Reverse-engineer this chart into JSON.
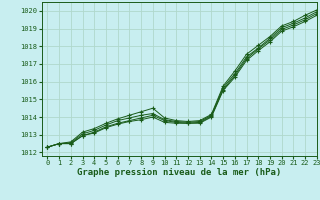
{
  "title": "Graphe pression niveau de la mer (hPa)",
  "bg_color": "#c8eef0",
  "grid_color": "#b0d8cc",
  "line_color": "#1a5c1a",
  "xlim": [
    -0.5,
    23
  ],
  "ylim": [
    1011.8,
    1020.5
  ],
  "yticks": [
    1012,
    1013,
    1014,
    1015,
    1016,
    1017,
    1018,
    1019,
    1020
  ],
  "xticks": [
    0,
    1,
    2,
    3,
    4,
    5,
    6,
    7,
    8,
    9,
    10,
    11,
    12,
    13,
    14,
    15,
    16,
    17,
    18,
    19,
    20,
    21,
    22,
    23
  ],
  "series": [
    [
      1012.3,
      1012.5,
      1012.5,
      1012.95,
      1013.1,
      1013.4,
      1013.6,
      1013.75,
      1013.85,
      1014.0,
      1013.7,
      1013.65,
      1013.65,
      1013.65,
      1014.0,
      1015.5,
      1016.25,
      1017.2,
      1017.75,
      1018.25,
      1018.85,
      1019.1,
      1019.4,
      1019.75
    ],
    [
      1012.3,
      1012.5,
      1012.5,
      1012.95,
      1013.15,
      1013.45,
      1013.65,
      1013.8,
      1013.95,
      1014.1,
      1013.8,
      1013.7,
      1013.65,
      1013.7,
      1014.05,
      1015.55,
      1016.35,
      1017.3,
      1017.85,
      1018.35,
      1018.95,
      1019.2,
      1019.5,
      1019.85
    ],
    [
      1012.3,
      1012.5,
      1012.55,
      1013.05,
      1013.25,
      1013.55,
      1013.8,
      1013.95,
      1014.1,
      1014.2,
      1013.85,
      1013.75,
      1013.7,
      1013.75,
      1014.1,
      1015.65,
      1016.45,
      1017.4,
      1017.9,
      1018.45,
      1019.05,
      1019.3,
      1019.6,
      1019.95
    ],
    [
      1012.3,
      1012.5,
      1012.6,
      1013.15,
      1013.35,
      1013.65,
      1013.9,
      1014.1,
      1014.3,
      1014.5,
      1013.95,
      1013.8,
      1013.75,
      1013.8,
      1014.15,
      1015.75,
      1016.6,
      1017.55,
      1018.05,
      1018.55,
      1019.15,
      1019.4,
      1019.75,
      1020.05
    ]
  ]
}
